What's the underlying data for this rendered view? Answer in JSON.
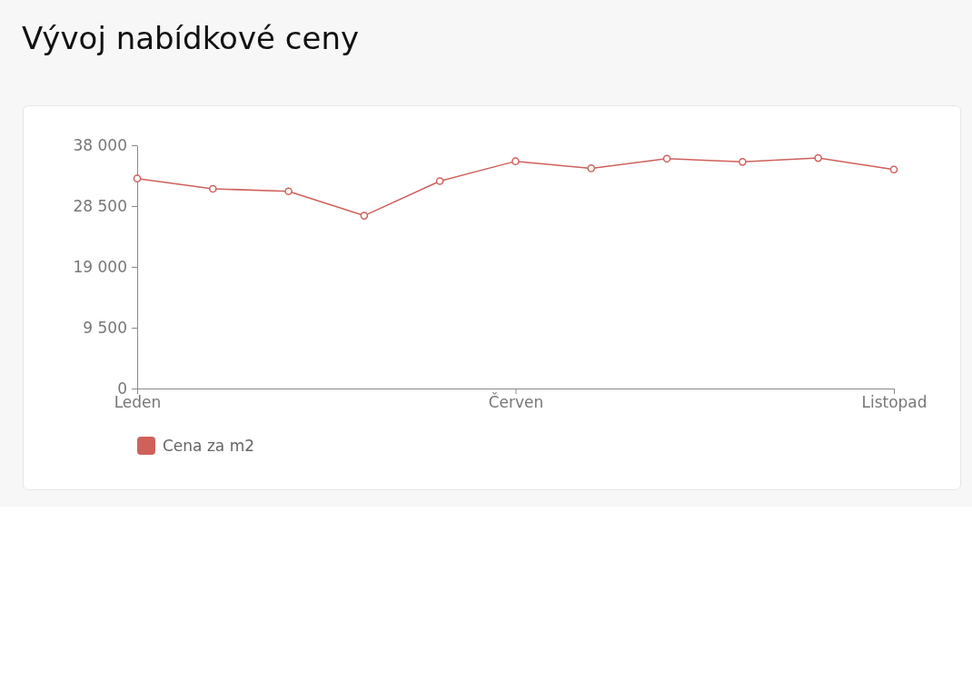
{
  "chart_data": {
    "type": "line",
    "title": "Vývoj nabídkové ceny",
    "categories": [
      "Leden",
      null,
      null,
      null,
      null,
      "Červen",
      null,
      null,
      null,
      null,
      "Listopad"
    ],
    "series": [
      {
        "name": "Cena za m2",
        "color": "#cf615b",
        "values": [
          32800,
          31200,
          30800,
          27000,
          32400,
          35500,
          34400,
          35900,
          35400,
          36000,
          34200
        ]
      }
    ],
    "ylim": [
      0,
      38000
    ],
    "yticks": [
      0,
      {
        "value": 9500,
        "label": "9 500"
      },
      {
        "value": 19000,
        "label": "19 000"
      },
      {
        "value": 28500,
        "label": "28 500"
      },
      {
        "value": 38000,
        "label": "38 000"
      }
    ],
    "grid": false,
    "legend": "bottom left",
    "marker": "circle",
    "line_style": "solid"
  }
}
